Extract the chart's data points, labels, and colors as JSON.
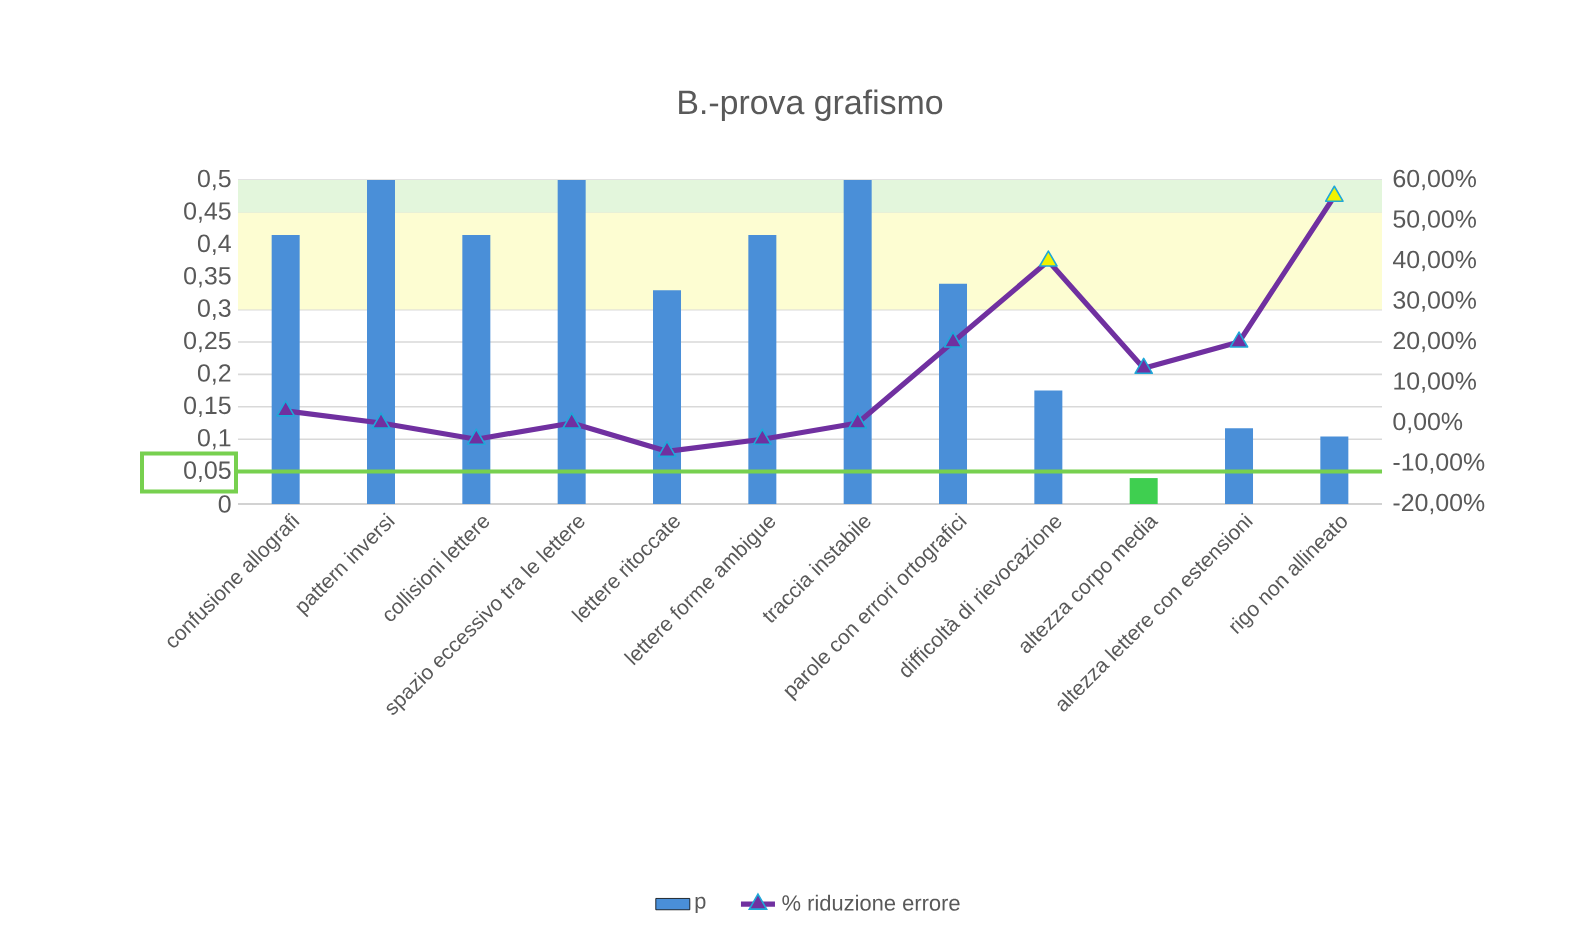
{
  "chart_data": {
    "type": "bar",
    "title": "B.-prova grafismo",
    "categories": [
      "confusione allografi",
      "pattern inversi",
      "collisioni lettere",
      "spazio eccessivo tra le lettere",
      "lettere ritoccate",
      "lettere forme ambigue",
      "traccia instabile",
      "parole con errori ortografici",
      "difficoltà di rievocazione",
      "altezza corpo media",
      "altezza lettere con estensioni",
      "rigo non allineato"
    ],
    "series": [
      {
        "name": "p",
        "colors": [
          "#4a8fd8",
          "#4a8fd8",
          "#4a8fd8",
          "#4a8fd8",
          "#4a8fd8",
          "#4a8fd8",
          "#4a8fd8",
          "#4a8fd8",
          "#4a8fd8",
          "#3fcf50",
          "#4a8fd8",
          "#4a8fd8"
        ],
        "values": [
          0.415,
          0.5,
          0.415,
          0.5,
          0.33,
          0.415,
          0.5,
          0.34,
          0.175,
          0.04,
          0.117,
          0.104
        ]
      },
      {
        "name": "% riduzione errore",
        "type": "line",
        "axis": "y2",
        "color": "#7030a0",
        "colors": [
          "#7030a0",
          "#7030a0",
          "#7030a0",
          "#7030a0",
          "#7030a0",
          "#7030a0",
          "#7030a0",
          "#7030a0",
          "#f2f200",
          "#7030a0",
          "#7030a0",
          "#f2f200"
        ],
        "marker": "triangle",
        "values": [
          3,
          0,
          -4,
          0,
          -7,
          -4,
          0,
          20,
          40,
          13.5,
          20,
          56
        ]
      }
    ],
    "ylim": [
      0,
      0.5
    ],
    "yticks": [
      0,
      {
        "value": 0.05,
        "label": "0,05"
      },
      {
        "value": 0.1,
        "label": "0,1"
      },
      {
        "value": 0.15,
        "label": "0,15"
      },
      {
        "value": 0.2,
        "label": "0,2"
      },
      {
        "value": 0.25,
        "label": "0,25"
      },
      {
        "value": 0.3,
        "label": "0,3"
      },
      {
        "value": 0.35,
        "label": "0,35"
      },
      {
        "value": 0.4,
        "label": "0,4"
      },
      {
        "value": 0.45,
        "label": "0,45"
      },
      {
        "value": 0.5,
        "label": "0,5"
      }
    ],
    "y2lim": [
      -20,
      60
    ],
    "y2ticks": [
      {
        "value": -20,
        "label": "-20,00%"
      },
      {
        "value": -10,
        "label": "-10,00%"
      },
      {
        "value": 0,
        "label": "0,00%"
      },
      {
        "value": 10,
        "label": "10,00%"
      },
      {
        "value": 20,
        "label": "20,00%"
      },
      {
        "value": 30,
        "label": "30,00%"
      },
      {
        "value": 40,
        "label": "40,00%"
      },
      {
        "value": 50,
        "label": "50,00%"
      },
      {
        "value": 60,
        "label": "60,00%"
      }
    ],
    "bands": [
      {
        "axis": "y",
        "from": 0.3,
        "to": 0.45,
        "color": "#fdfdd2"
      },
      {
        "axis": "y",
        "from": 0.45,
        "to": 0.5,
        "color": "#e3f6dc"
      }
    ],
    "ref_lines": [
      {
        "axis": "y",
        "value": 0.05,
        "color": "#77d04f"
      }
    ],
    "grid": "y",
    "legend": "bottom"
  }
}
